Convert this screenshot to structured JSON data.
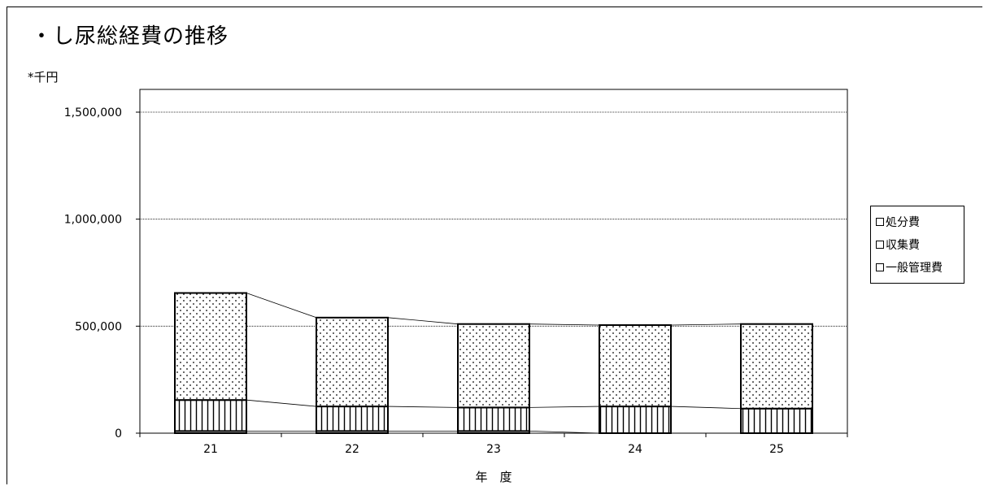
{
  "chart_data": {
    "type": "bar",
    "stacked": true,
    "title": "・し尿総経費の推移",
    "ylabel": "*千円",
    "xlabel": "年　度",
    "categories": [
      "21",
      "22",
      "23",
      "24",
      "25"
    ],
    "yticks": [
      "0",
      "500,000",
      "1,000,000",
      "1,500,000"
    ],
    "ylim": [
      0,
      1500000
    ],
    "grid": true,
    "legend_position": "right",
    "series": [
      {
        "name": "一般管理費",
        "values": [
          10000,
          10000,
          10000,
          0,
          0
        ],
        "pattern": "solid"
      },
      {
        "name": "収集費",
        "values": [
          145000,
          115000,
          110000,
          125000,
          115000
        ],
        "pattern": "vertical-lines"
      },
      {
        "name": "処分費",
        "values": [
          500000,
          415000,
          390000,
          380000,
          395000
        ],
        "pattern": "dots"
      }
    ]
  }
}
